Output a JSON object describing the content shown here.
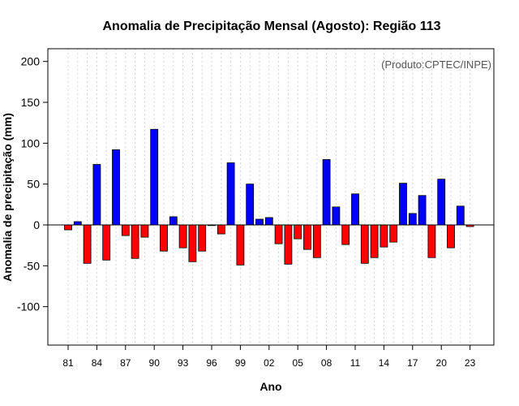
{
  "chart_data": {
    "type": "bar",
    "title": "Anomalia de Precipitação Mensal (Agosto): Região 113",
    "xlabel": "Ano",
    "ylabel": "Anomalia de precipitação (mm)",
    "annotation": "(Produto:CPTEC/INPE)",
    "ylim": [
      -150,
      220
    ],
    "yticks": [
      -100,
      -50,
      0,
      50,
      100,
      150,
      200
    ],
    "xticks": [
      "81",
      "84",
      "87",
      "90",
      "93",
      "96",
      "99",
      "02",
      "05",
      "08",
      "11",
      "14",
      "17",
      "20",
      "23"
    ],
    "positive_color": "#0000ff",
    "negative_color": "#ff0000",
    "years": [
      1981,
      1982,
      1983,
      1984,
      1985,
      1986,
      1987,
      1988,
      1989,
      1990,
      1991,
      1992,
      1993,
      1994,
      1995,
      1996,
      1997,
      1998,
      1999,
      2000,
      2001,
      2002,
      2003,
      2004,
      2005,
      2006,
      2007,
      2008,
      2009,
      2010,
      2011,
      2012,
      2013,
      2014,
      2015,
      2016,
      2017,
      2018,
      2019,
      2020,
      2021,
      2022,
      2023
    ],
    "values": [
      -6,
      4,
      -47,
      74,
      -43,
      92,
      -13,
      -41,
      -15,
      117,
      -32,
      10,
      -28,
      -45,
      -32,
      0,
      -11,
      76,
      -49,
      50,
      7,
      9,
      -23,
      -48,
      -17,
      -30,
      -40,
      80,
      22,
      -24,
      38,
      -47,
      -40,
      -27,
      -21,
      51,
      14,
      36,
      -40,
      56,
      -28,
      23,
      -2
    ]
  }
}
